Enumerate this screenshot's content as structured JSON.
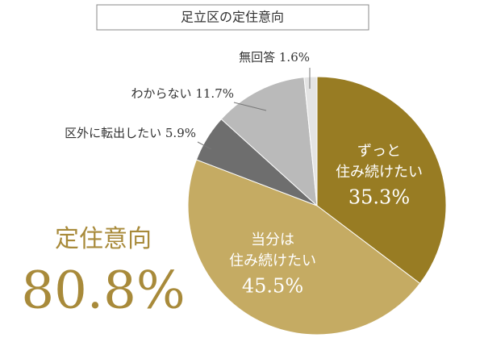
{
  "chart_data": {
    "type": "pie",
    "title": "足立区の定住意向",
    "categories": [
      [
        "ずっと",
        "住み続けたい"
      ],
      [
        "当分は",
        "住み続けたい"
      ],
      [
        "区外に転出したい"
      ],
      [
        "わからない"
      ],
      [
        "無回答"
      ]
    ],
    "values": [
      35.3,
      45.5,
      5.9,
      11.7,
      1.6
    ],
    "value_labels": [
      "35.3%",
      "45.5%",
      "5.9%",
      "11.7%",
      "1.6%"
    ],
    "colors": [
      "#987c23",
      "#c5ab63",
      "#6e6e6e",
      "#bababa",
      "#e4e4e4"
    ],
    "annotation": {
      "label": "定住意向",
      "text": "80.8%"
    }
  }
}
